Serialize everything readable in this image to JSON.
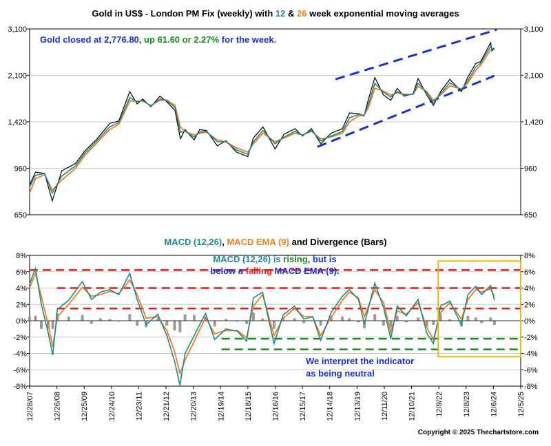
{
  "chart_data": [
    {
      "type": "line",
      "title": {
        "prefix": "Gold in US$ - London PM Fix (weekly) with ",
        "n1": "12",
        "mid": " & ",
        "n2": "26",
        "suffix": " week exponential moving averages"
      },
      "scale": "log",
      "ylim": [
        650,
        3100
      ],
      "yticks": [
        650,
        960,
        1420,
        2100,
        3100
      ],
      "ytick_labels": [
        "650",
        "960",
        "1,420",
        "2,100",
        "3,100"
      ],
      "xlim": [
        "2007-12-28",
        "2025-12-05"
      ],
      "series": [],
      "x": [
        "2007-12-28",
        "2008-03-15",
        "2008-07-15",
        "2008-10-25",
        "2009-03-01",
        "2009-09-01",
        "2010-01-01",
        "2010-06-15",
        "2010-12-01",
        "2011-04-01",
        "2011-08-25",
        "2011-12-01",
        "2012-02-15",
        "2012-06-01",
        "2012-10-01",
        "2013-01-01",
        "2013-04-20",
        "2013-07-01",
        "2013-09-01",
        "2013-12-31",
        "2014-03-15",
        "2014-06-15",
        "2014-11-05",
        "2015-03-01",
        "2015-07-20",
        "2015-12-17",
        "2016-03-01",
        "2016-07-06",
        "2016-12-15",
        "2017-04-15",
        "2017-09-08",
        "2017-12-15",
        "2018-04-15",
        "2018-08-16",
        "2019-01-01",
        "2019-06-01",
        "2019-09-05",
        "2020-01-01",
        "2020-03-15",
        "2020-05-15",
        "2020-08-07",
        "2020-11-30",
        "2021-03-08",
        "2021-06-01",
        "2021-09-01",
        "2022-01-01",
        "2022-03-08",
        "2022-07-01",
        "2022-09-28",
        "2023-01-01",
        "2023-05-04",
        "2023-10-06",
        "2024-01-01",
        "2024-04-15",
        "2024-06-15",
        "2024-10-30",
        "2024-11-15",
        "2024-12-20"
      ],
      "gold": [
        835,
        930,
        920,
        730,
        940,
        1000,
        1110,
        1230,
        1400,
        1430,
        1830,
        1650,
        1720,
        1610,
        1760,
        1680,
        1560,
        1230,
        1330,
        1220,
        1330,
        1320,
        1160,
        1210,
        1100,
        1060,
        1240,
        1360,
        1130,
        1280,
        1340,
        1260,
        1340,
        1180,
        1290,
        1340,
        1530,
        1520,
        1490,
        1720,
        2060,
        1780,
        1700,
        1880,
        1760,
        1800,
        2040,
        1780,
        1630,
        1830,
        2030,
        1830,
        2070,
        2320,
        2350,
        2760,
        2580,
        2630
      ],
      "ema12": [
        820,
        905,
        920,
        780,
        900,
        980,
        1090,
        1210,
        1360,
        1410,
        1740,
        1680,
        1700,
        1620,
        1720,
        1700,
        1600,
        1300,
        1310,
        1250,
        1300,
        1310,
        1200,
        1200,
        1120,
        1080,
        1200,
        1320,
        1180,
        1250,
        1310,
        1270,
        1320,
        1210,
        1260,
        1310,
        1470,
        1510,
        1500,
        1650,
        1960,
        1820,
        1750,
        1830,
        1780,
        1790,
        1960,
        1820,
        1660,
        1800,
        1970,
        1860,
        2010,
        2250,
        2320,
        2680,
        2620,
        2640
      ],
      "ema26": [
        780,
        880,
        910,
        800,
        870,
        960,
        1070,
        1190,
        1330,
        1390,
        1690,
        1690,
        1690,
        1630,
        1700,
        1700,
        1630,
        1360,
        1310,
        1270,
        1290,
        1300,
        1220,
        1200,
        1140,
        1100,
        1180,
        1290,
        1200,
        1240,
        1290,
        1270,
        1310,
        1230,
        1250,
        1290,
        1420,
        1490,
        1500,
        1600,
        1880,
        1840,
        1780,
        1810,
        1790,
        1790,
        1910,
        1830,
        1700,
        1780,
        1920,
        1870,
        1970,
        2190,
        2280,
        2600,
        2620,
        2640
      ],
      "channel": [
        {
          "x": [
            "2018-07-01",
            "2024-12-20"
          ],
          "y": [
            1150,
            2090
          ]
        },
        {
          "x": [
            "2019-03-01",
            "2025-01-20"
          ],
          "y": [
            2030,
            3080
          ]
        }
      ],
      "note": {
        "prefix": "Gold closed at 2,776.80, ",
        "change": "up 61.60 or 2.27%",
        "suffix": " for the week."
      },
      "colors": {
        "gold": "#111111",
        "ema12": "#1e8a8a",
        "ema26": "#f07b22",
        "channel": "#1c2fd1",
        "note_text": "#1c2fd1",
        "note_change": "#1a8c1a"
      }
    },
    {
      "type": "line",
      "title": {
        "a": "MACD (12,26)",
        "b": ", ",
        "c": "MACD EMA (9)",
        "d": " and Divergence (Bars)"
      },
      "ylim": [
        -8,
        8
      ],
      "yticks": [
        -8,
        -6,
        -4,
        -2,
        0,
        2,
        4,
        6,
        8
      ],
      "ytick_labels": [
        "-8%",
        "-6%",
        "-4%",
        "-2%",
        "0%",
        "2%",
        "4%",
        "6%",
        "8%"
      ],
      "x_tick_labels": [
        "12/28/07",
        "12/26/08",
        "12/25/09",
        "12/24/10",
        "12/23/11",
        "12/21/12",
        "12/20/13",
        "12/19/14",
        "12/18/15",
        "12/16/16",
        "12/15/17",
        "12/14/18",
        "12/13/19",
        "12/11/20",
        "12/10/21",
        "12/9/22",
        "12/8/23",
        "12/6/24",
        "12/5/25"
      ],
      "x": [
        "2007-12-28",
        "2008-03-15",
        "2008-06-01",
        "2008-09-01",
        "2008-11-01",
        "2009-01-01",
        "2009-06-01",
        "2009-12-01",
        "2010-04-01",
        "2010-08-01",
        "2010-12-01",
        "2011-04-01",
        "2011-08-25",
        "2011-12-01",
        "2012-04-01",
        "2012-09-01",
        "2013-01-01",
        "2013-04-15",
        "2013-06-25",
        "2013-09-01",
        "2014-01-01",
        "2014-06-01",
        "2014-10-01",
        "2015-03-01",
        "2015-08-01",
        "2015-12-01",
        "2016-03-01",
        "2016-07-01",
        "2016-12-01",
        "2017-04-01",
        "2017-09-01",
        "2018-01-01",
        "2018-05-01",
        "2018-08-15",
        "2019-01-01",
        "2019-06-01",
        "2019-09-01",
        "2020-01-01",
        "2020-03-20",
        "2020-08-07",
        "2020-12-01",
        "2021-03-08",
        "2021-06-01",
        "2021-10-01",
        "2022-03-08",
        "2022-07-01",
        "2022-09-28",
        "2023-01-01",
        "2023-05-04",
        "2023-10-06",
        "2024-01-01",
        "2024-04-15",
        "2024-07-01",
        "2024-10-30",
        "2024-12-20"
      ],
      "macd": [
        4.5,
        6.4,
        2.0,
        -1.5,
        -4.2,
        1.4,
        2.5,
        4.8,
        2.6,
        3.5,
        3.8,
        3.2,
        5.8,
        2.6,
        -0.5,
        0.8,
        -1.8,
        -5.0,
        -7.9,
        -4.0,
        -1.8,
        0.9,
        -2.3,
        -1.0,
        -1.3,
        -2.5,
        2.8,
        3.5,
        -2.8,
        0.7,
        1.8,
        0.2,
        0.5,
        -2.4,
        1.0,
        3.0,
        3.8,
        2.6,
        -0.4,
        4.6,
        1.6,
        -2.2,
        1.8,
        0.6,
        2.6,
        -1.5,
        -2.8,
        1.8,
        2.4,
        -0.5,
        3.2,
        4.2,
        3.2,
        4.3,
        2.5
      ],
      "signal": [
        4.0,
        5.8,
        3.0,
        -0.5,
        -3.2,
        0.5,
        2.0,
        4.1,
        3.0,
        3.2,
        3.6,
        3.3,
        5.0,
        3.2,
        0.3,
        0.5,
        -1.2,
        -3.8,
        -6.5,
        -4.8,
        -2.5,
        0.4,
        -1.6,
        -1.2,
        -1.2,
        -2.1,
        1.8,
        3.2,
        -1.8,
        0.3,
        1.5,
        0.5,
        0.5,
        -1.8,
        0.4,
        2.5,
        3.5,
        2.8,
        0.5,
        3.8,
        2.2,
        -1.4,
        1.2,
        0.8,
        2.2,
        -0.8,
        -2.3,
        1.0,
        2.2,
        0.2,
        2.6,
        3.8,
        3.5,
        3.9,
        3.0
      ],
      "bars": [
        0.5,
        0.6,
        -1.0,
        -1.0,
        -1.0,
        0.9,
        0.5,
        0.7,
        -0.4,
        0.3,
        0.2,
        -0.1,
        0.8,
        -0.6,
        -0.8,
        0.3,
        -0.6,
        -1.2,
        -1.4,
        0.8,
        0.7,
        0.5,
        -0.7,
        0.2,
        -0.1,
        -0.4,
        1.0,
        0.3,
        -1.0,
        0.4,
        0.3,
        -0.3,
        0.0,
        -0.6,
        0.6,
        0.5,
        0.3,
        -0.2,
        -0.9,
        0.8,
        -0.6,
        -0.8,
        0.6,
        -0.2,
        0.4,
        -0.7,
        -0.5,
        0.8,
        0.2,
        -0.7,
        0.6,
        0.4,
        -0.3,
        0.4,
        -0.5
      ],
      "levels": [
        {
          "y": 6.2,
          "color": "#e01b1b",
          "x": [
            "2007-12-28",
            "2025-12-05"
          ]
        },
        {
          "y": 4.0,
          "color": "#e01b1b",
          "x": [
            "2008-12-26",
            "2025-12-05"
          ]
        },
        {
          "y": 1.5,
          "color": "#e01b1b",
          "x": [
            "2008-12-26",
            "2025-12-05"
          ]
        },
        {
          "y": -2.2,
          "color": "#1a8c1a",
          "x": [
            "2015-01-01",
            "2025-12-05"
          ]
        },
        {
          "y": -3.5,
          "color": "#1a8c1a",
          "x": [
            "2015-01-01",
            "2025-12-05"
          ]
        }
      ],
      "highlight_box": {
        "x": [
          "2022-12-01",
          "2025-12-05"
        ],
        "y": [
          -4.4,
          7.3
        ],
        "color": "#f4b400"
      },
      "annotation1": {
        "a": "MACD (12,26) is ",
        "b": "rising",
        "c": ", but is",
        "d": "below a ",
        "e": "falling",
        "f": " MACD EMA (9)."
      },
      "annotation2": [
        "We interpret the indicator",
        "as being neutral"
      ],
      "colors": {
        "macd": "#1e8a8a",
        "signal": "#f07b22",
        "bars": "#9a9a9a",
        "teal": "#1e8a8a",
        "orange": "#f07b22",
        "green": "#1a8c1a",
        "red": "#e01b1b",
        "blue": "#1c2fd1"
      }
    }
  ],
  "copyright": "Copyright © 2025 Thechartstore.com"
}
